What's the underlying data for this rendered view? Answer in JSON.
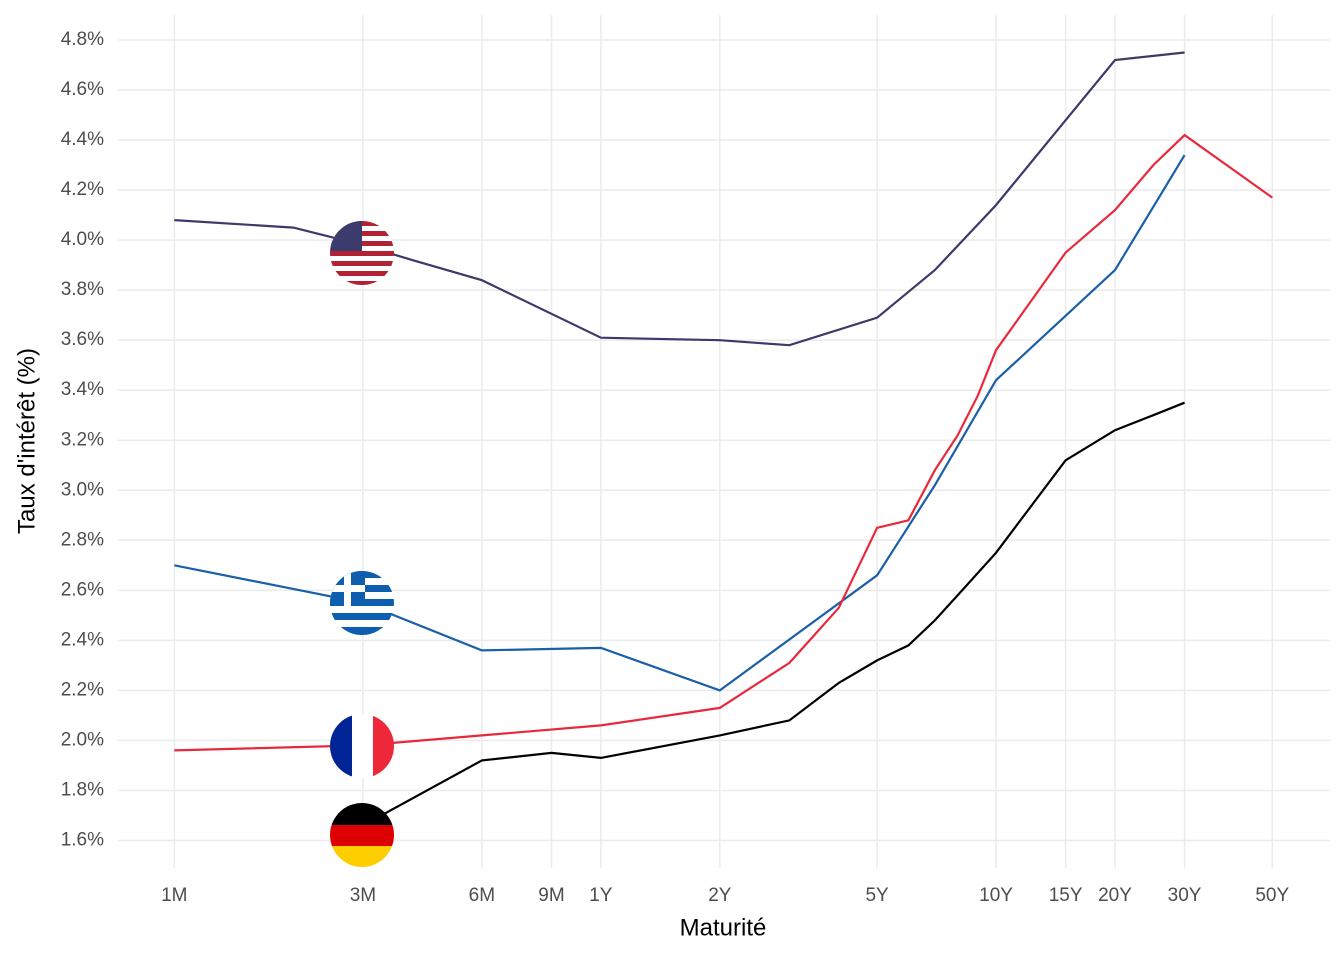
{
  "chart_data": {
    "type": "line",
    "x_label": "Maturité",
    "y_label": "Taux d'intérêt (%)",
    "xscale": "log",
    "grid": true,
    "xlim": [
      0.06,
      70
    ],
    "ylim": [
      1.49,
      4.9
    ],
    "xticks": [
      {
        "value": 0.0833,
        "label": "1M"
      },
      {
        "value": 0.25,
        "label": "3M"
      },
      {
        "value": 0.5,
        "label": "6M"
      },
      {
        "value": 0.75,
        "label": "9M"
      },
      {
        "value": 1,
        "label": "1Y"
      },
      {
        "value": 2,
        "label": "2Y"
      },
      {
        "value": 5,
        "label": "5Y"
      },
      {
        "value": 10,
        "label": "10Y"
      },
      {
        "value": 15,
        "label": "15Y"
      },
      {
        "value": 20,
        "label": "20Y"
      },
      {
        "value": 30,
        "label": "30Y"
      },
      {
        "value": 50,
        "label": "50Y"
      }
    ],
    "yticks": [
      {
        "value": 1.6,
        "label": "1.6%"
      },
      {
        "value": 1.8,
        "label": "1.8%"
      },
      {
        "value": 2.0,
        "label": "2.0%"
      },
      {
        "value": 2.2,
        "label": "2.2%"
      },
      {
        "value": 2.4,
        "label": "2.4%"
      },
      {
        "value": 2.6,
        "label": "2.6%"
      },
      {
        "value": 2.8,
        "label": "2.8%"
      },
      {
        "value": 3.0,
        "label": "3.0%"
      },
      {
        "value": 3.2,
        "label": "3.2%"
      },
      {
        "value": 3.4,
        "label": "3.4%"
      },
      {
        "value": 3.6,
        "label": "3.6%"
      },
      {
        "value": 3.8,
        "label": "3.8%"
      },
      {
        "value": 4.0,
        "label": "4.0%"
      },
      {
        "value": 4.2,
        "label": "4.2%"
      },
      {
        "value": 4.4,
        "label": "4.4%"
      },
      {
        "value": 4.6,
        "label": "4.6%"
      },
      {
        "value": 4.8,
        "label": "4.8%"
      }
    ],
    "series": [
      {
        "color": "#3b3a6b",
        "x": [
          0.0833,
          0.1667,
          0.25,
          0.3333,
          0.5,
          1,
          2,
          3,
          5,
          7,
          10,
          20,
          30
        ],
        "values": [
          4.08,
          4.05,
          3.98,
          3.92,
          3.84,
          3.61,
          3.6,
          3.58,
          3.69,
          3.88,
          4.14,
          4.72,
          4.75
        ]
      },
      {
        "color": "#1a5fa8",
        "x": [
          0.0833,
          0.25,
          0.5,
          1,
          2,
          5,
          7,
          10,
          20,
          30
        ],
        "values": [
          2.7,
          2.55,
          2.36,
          2.37,
          2.2,
          2.66,
          3.02,
          3.44,
          3.88,
          4.34
        ]
      },
      {
        "color": "#e8293c",
        "x": [
          0.0833,
          0.25,
          0.5,
          1,
          2,
          3,
          4,
          5,
          6,
          7,
          8,
          9,
          10,
          15,
          20,
          25,
          30,
          50
        ],
        "values": [
          1.96,
          1.98,
          2.02,
          2.06,
          2.13,
          2.31,
          2.53,
          2.85,
          2.88,
          3.08,
          3.22,
          3.38,
          3.56,
          3.95,
          4.12,
          4.3,
          4.42,
          4.17
        ]
      },
      {
        "color": "#000000",
        "x": [
          0.25,
          0.5,
          0.75,
          1,
          2,
          3,
          4,
          5,
          6,
          7,
          8,
          10,
          15,
          20,
          25,
          30
        ],
        "values": [
          1.66,
          1.92,
          1.95,
          1.93,
          2.02,
          2.08,
          2.23,
          2.32,
          2.38,
          2.48,
          2.58,
          2.75,
          3.12,
          3.24,
          3.3,
          3.35
        ]
      }
    ]
  }
}
